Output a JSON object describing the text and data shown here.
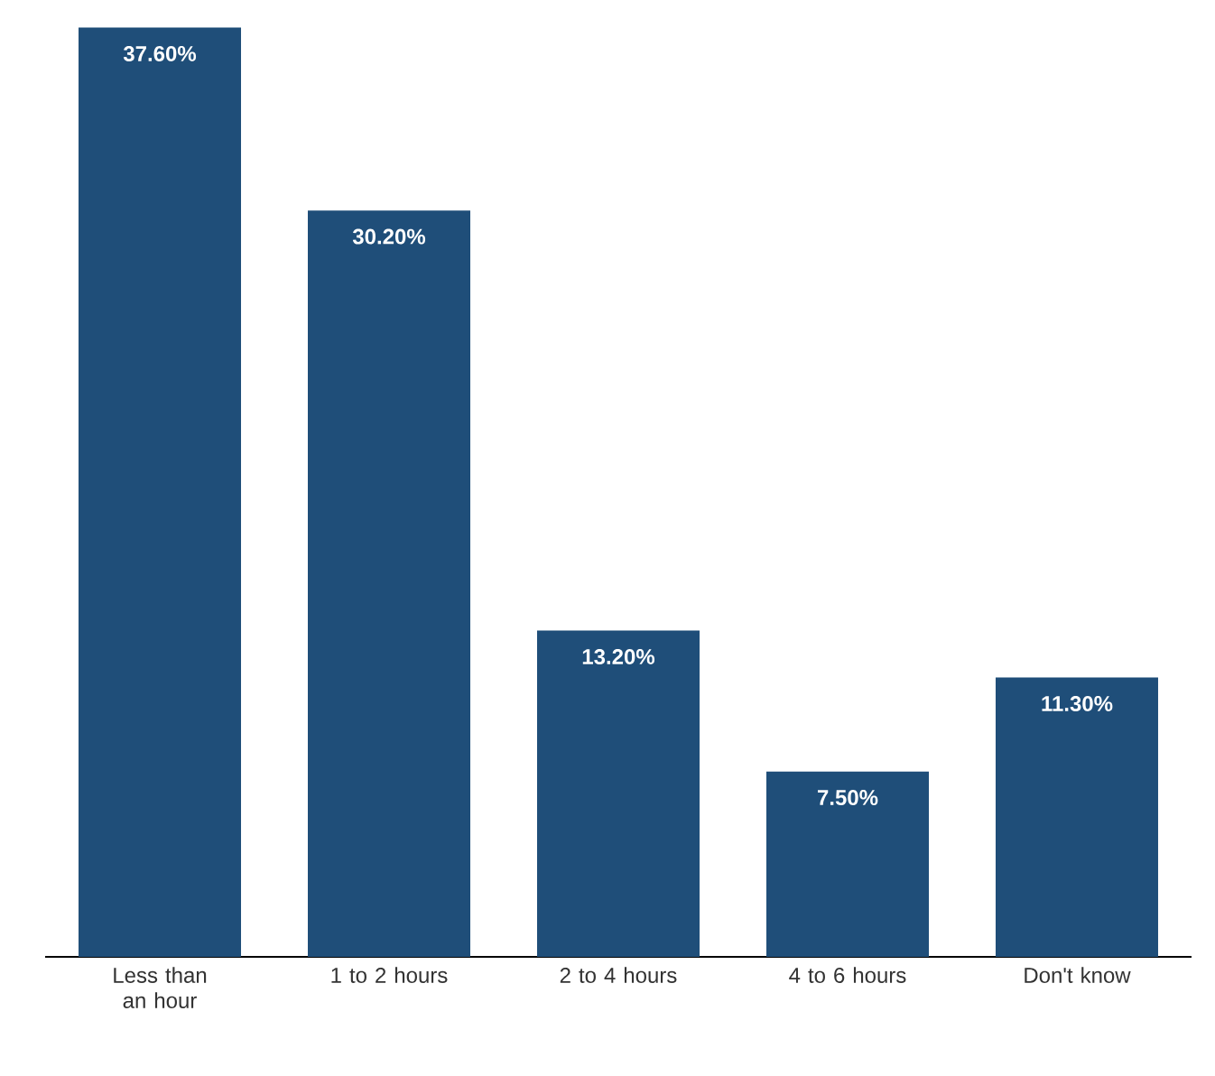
{
  "chart_data": {
    "type": "bar",
    "categories": [
      "Less than an hour",
      "1 to 2 hours",
      "2 to 4 hours",
      "4 to 6 hours",
      "Don't know"
    ],
    "values": [
      37.6,
      30.2,
      13.2,
      7.5,
      11.3
    ],
    "value_labels": [
      "37.60%",
      "30.20%",
      "13.20%",
      "7.50%",
      "11.30%"
    ],
    "color": "#1f4e79"
  }
}
